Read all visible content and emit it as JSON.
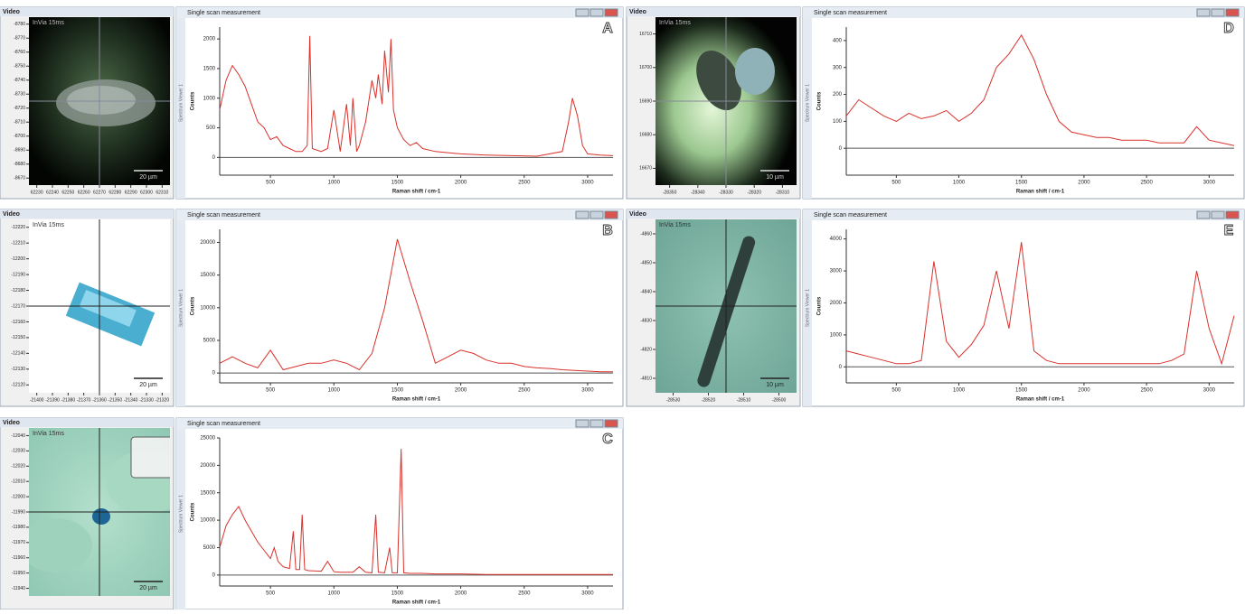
{
  "chart_data": [
    {
      "type": "line",
      "letter": "A",
      "window_title": "Single scan measurement",
      "video_title": "Video",
      "overlay": "InVia 15ms",
      "scale_label": "20 µm",
      "side_label": "Spectrum Viewer 1",
      "xlabel": "Raman shift / cm-1",
      "ylabel": "Counts",
      "color": "#d9312b",
      "x": [
        100,
        150,
        200,
        250,
        300,
        350,
        400,
        450,
        500,
        550,
        600,
        650,
        700,
        750,
        790,
        810,
        830,
        900,
        950,
        1000,
        1050,
        1100,
        1130,
        1150,
        1180,
        1200,
        1250,
        1300,
        1330,
        1350,
        1380,
        1400,
        1430,
        1450,
        1470,
        1500,
        1550,
        1600,
        1650,
        1700,
        1800,
        1900,
        2000,
        2200,
        2400,
        2600,
        2800,
        2850,
        2880,
        2920,
        2960,
        3000,
        3100,
        3200
      ],
      "values": [
        800,
        1300,
        1550,
        1400,
        1200,
        900,
        600,
        500,
        300,
        350,
        200,
        150,
        100,
        100,
        200,
        2050,
        150,
        100,
        150,
        800,
        100,
        900,
        200,
        1000,
        100,
        200,
        600,
        1300,
        1000,
        1400,
        900,
        1800,
        1100,
        2000,
        800,
        500,
        300,
        200,
        250,
        150,
        100,
        80,
        60,
        40,
        30,
        20,
        100,
        600,
        1000,
        700,
        200,
        60,
        40,
        30
      ],
      "xlim": [
        100,
        3200
      ],
      "ylim": [
        -300,
        2200
      ],
      "xticks": [
        500,
        1000,
        1500,
        2000,
        2500,
        3000
      ],
      "yticks": [
        0,
        500,
        1000,
        1500,
        2000
      ],
      "image_xlim": [
        62225,
        62315
      ],
      "image_xticks": [
        62230,
        62240,
        62250,
        62260,
        62270,
        62280,
        62290,
        62300,
        62310
      ],
      "image_ylim": [
        -8785,
        -8665
      ],
      "image_yticks": [
        -8780,
        -8770,
        -8760,
        -8750,
        -8740,
        -8730,
        -8720,
        -8710,
        -8700,
        -8690,
        -8680,
        -8670
      ]
    },
    {
      "type": "line",
      "letter": "B",
      "window_title": "Single scan measurement",
      "video_title": "Video",
      "overlay": "InVia 15ms",
      "scale_label": "20 µm",
      "side_label": "Spectrum Viewer 1",
      "xlabel": "Raman shift / cm-1",
      "ylabel": "Counts",
      "color": "#d9312b",
      "x": [
        100,
        200,
        300,
        400,
        500,
        600,
        700,
        800,
        900,
        1000,
        1100,
        1200,
        1300,
        1400,
        1500,
        1600,
        1700,
        1800,
        1900,
        2000,
        2100,
        2200,
        2300,
        2400,
        2500,
        2600,
        2700,
        2800,
        2900,
        3000,
        3100,
        3200
      ],
      "values": [
        1500,
        2500,
        1500,
        800,
        3500,
        500,
        1000,
        1500,
        1500,
        2000,
        1500,
        500,
        3000,
        10000,
        20500,
        14000,
        8000,
        1500,
        2500,
        3500,
        3000,
        2000,
        1500,
        1500,
        1000,
        800,
        700,
        500,
        400,
        300,
        200,
        200
      ],
      "xlim": [
        100,
        3200
      ],
      "ylim": [
        -1500,
        22000
      ],
      "xticks": [
        500,
        1000,
        1500,
        2000,
        2500,
        3000
      ],
      "yticks": [
        0,
        5000,
        10000,
        15000,
        20000
      ],
      "image_xlim": [
        -21405,
        -21315
      ],
      "image_xticks": [
        -21400,
        -21390,
        -21380,
        -21370,
        -21360,
        -21350,
        -21340,
        -21330,
        -21320
      ],
      "image_ylim": [
        -12225,
        -12115
      ],
      "image_yticks": [
        -12220,
        -12210,
        -12200,
        -12190,
        -12180,
        -12170,
        -12160,
        -12150,
        -12140,
        -12130,
        -12120
      ]
    },
    {
      "type": "line",
      "letter": "C",
      "window_title": "Single scan measurement",
      "video_title": "Video",
      "overlay": "InVia 15ms",
      "scale_label": "20 µm",
      "side_label": "Spectrum Viewer 1",
      "xlabel": "Raman shift / cm-1",
      "ylabel": "Counts",
      "color": "#d9312b",
      "x": [
        100,
        150,
        200,
        250,
        300,
        350,
        400,
        450,
        500,
        530,
        560,
        600,
        650,
        680,
        700,
        730,
        750,
        770,
        800,
        900,
        950,
        1000,
        1050,
        1100,
        1150,
        1200,
        1250,
        1300,
        1330,
        1350,
        1400,
        1440,
        1460,
        1500,
        1530,
        1550,
        1600,
        1700,
        1800,
        2000,
        2200,
        2500,
        2800,
        3000,
        3200
      ],
      "values": [
        5000,
        9000,
        11000,
        12500,
        10000,
        8000,
        6000,
        4500,
        3000,
        5000,
        2500,
        1500,
        1200,
        8000,
        1000,
        1000,
        11000,
        1000,
        800,
        700,
        2500,
        600,
        500,
        500,
        500,
        1500,
        500,
        400,
        11000,
        500,
        400,
        5000,
        400,
        400,
        23000,
        400,
        300,
        300,
        200,
        200,
        100,
        100,
        100,
        100,
        100
      ],
      "xlim": [
        100,
        3200
      ],
      "ylim": [
        -2000,
        25000
      ],
      "xticks": [
        500,
        1000,
        1500,
        2000,
        2500,
        3000
      ],
      "yticks": [
        0,
        5000,
        10000,
        15000,
        20000,
        25000
      ],
      "image_ylim": [
        -12045,
        -11935
      ],
      "image_yticks": [
        -12040,
        -12030,
        -12020,
        -12010,
        -12000,
        -11990,
        -11980,
        -11970,
        -11960,
        -11950,
        -11940
      ]
    },
    {
      "type": "line",
      "letter": "D",
      "window_title": "Single scan measurement",
      "video_title": "Video",
      "overlay": "InVia 15ms",
      "scale_label": "10 µm",
      "side_label": "Spectrum Viewer 1",
      "xlabel": "Raman shift / cm-1",
      "ylabel": "Counts",
      "color": "#d9312b",
      "x": [
        100,
        200,
        300,
        400,
        500,
        600,
        700,
        800,
        900,
        1000,
        1100,
        1200,
        1300,
        1400,
        1500,
        1600,
        1700,
        1800,
        1900,
        2000,
        2100,
        2200,
        2300,
        2400,
        2500,
        2600,
        2700,
        2800,
        2900,
        3000,
        3100,
        3200
      ],
      "values": [
        120,
        180,
        150,
        120,
        100,
        130,
        110,
        120,
        140,
        100,
        130,
        180,
        300,
        350,
        420,
        330,
        200,
        100,
        60,
        50,
        40,
        40,
        30,
        30,
        30,
        20,
        20,
        20,
        80,
        30,
        20,
        10
      ],
      "xlim": [
        100,
        3200
      ],
      "ylim": [
        -100,
        450
      ],
      "xticks": [
        500,
        1000,
        1500,
        2000,
        2500,
        3000
      ],
      "yticks": [
        0,
        100,
        200,
        300,
        400
      ],
      "image_xlim": [
        -28355,
        -28305
      ],
      "image_xticks": [
        -28350,
        -28340,
        -28330,
        -28320,
        -28310
      ],
      "image_ylim": [
        16715,
        16665
      ],
      "image_yticks": [
        16710,
        16700,
        16690,
        16680,
        16670
      ]
    },
    {
      "type": "line",
      "letter": "E",
      "window_title": "Single scan measurement",
      "video_title": "Video",
      "overlay": "InVia 15ms",
      "scale_label": "10 µm",
      "side_label": "Spectrum Viewer 1",
      "xlabel": "Raman shift / cm-1",
      "ylabel": "Counts",
      "color": "#d9312b",
      "x": [
        100,
        200,
        300,
        400,
        500,
        600,
        700,
        800,
        900,
        1000,
        1100,
        1200,
        1300,
        1400,
        1500,
        1600,
        1700,
        1800,
        1900,
        2000,
        2100,
        2200,
        2300,
        2400,
        2500,
        2600,
        2700,
        2800,
        2900,
        3000,
        3100,
        3200
      ],
      "values": [
        500,
        400,
        300,
        200,
        100,
        100,
        200,
        3300,
        800,
        300,
        700,
        1300,
        3000,
        1200,
        3900,
        500,
        200,
        100,
        100,
        100,
        100,
        100,
        100,
        100,
        100,
        100,
        200,
        400,
        3000,
        1200,
        100,
        1600
      ],
      "xlim": [
        100,
        3200
      ],
      "ylim": [
        -500,
        4300
      ],
      "xticks": [
        500,
        1000,
        1500,
        2000,
        2500,
        3000
      ],
      "yticks": [
        0,
        1000,
        2000,
        3000,
        4000
      ],
      "image_xlim": [
        -28535,
        -28495
      ],
      "image_xticks": [
        -28530,
        -28520,
        -28510,
        -28500
      ],
      "image_ylim": [
        -4865,
        -4805
      ],
      "image_yticks": [
        -4860,
        -4850,
        -4840,
        -4830,
        -4820,
        -4810
      ]
    }
  ]
}
